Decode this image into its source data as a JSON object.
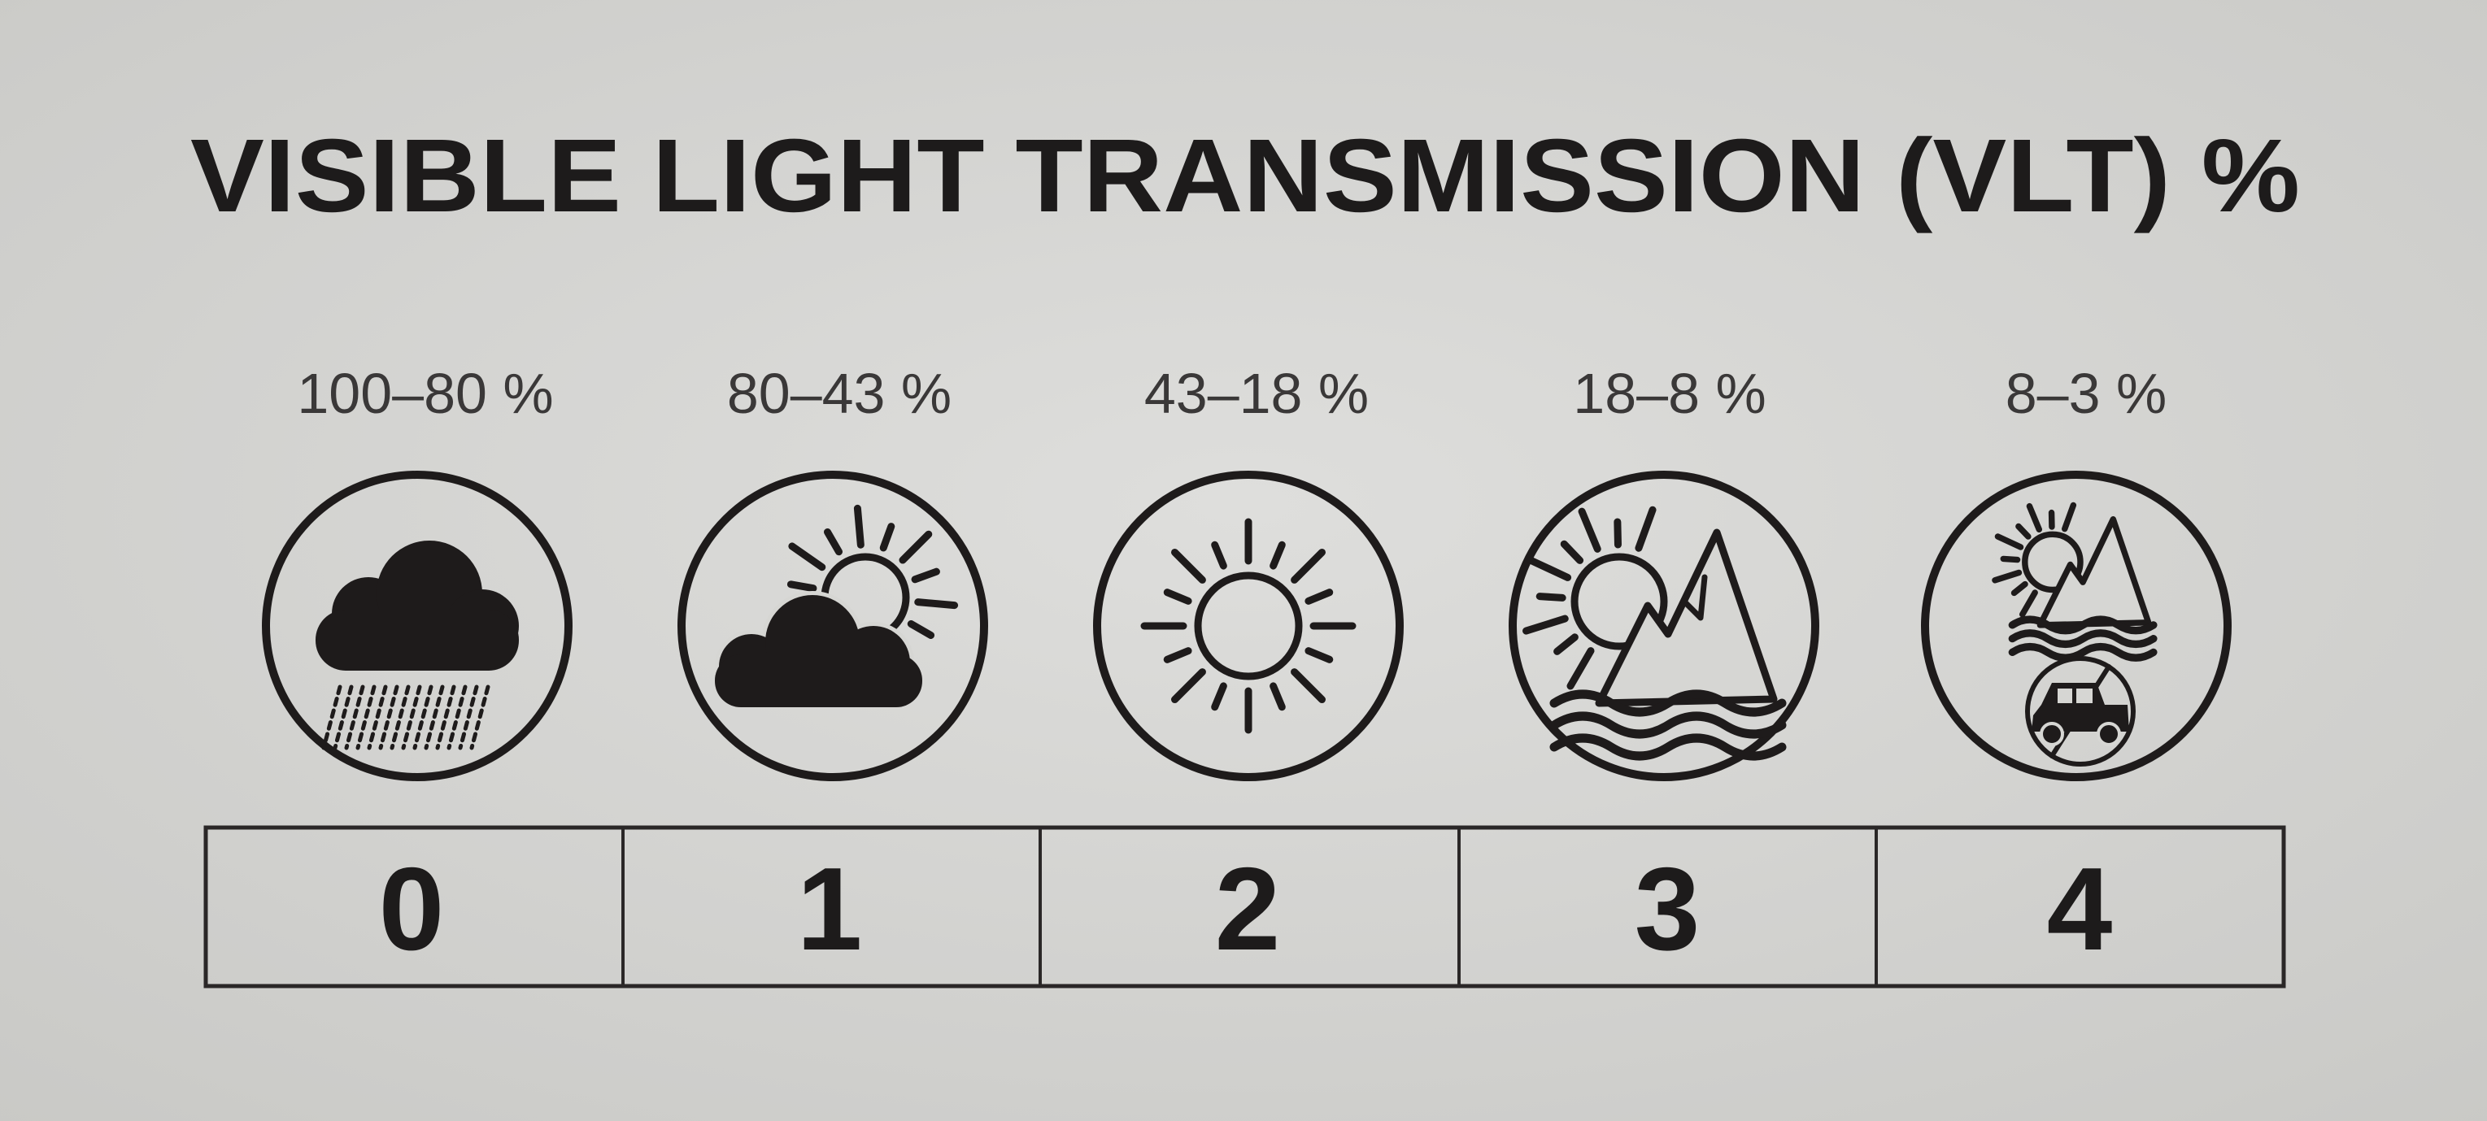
{
  "title": "VISIBLE LIGHT TRANSMISSION (VLT) %",
  "categories": [
    {
      "range": "100–80 %",
      "category": "0",
      "icon": "rain-cloud-icon"
    },
    {
      "range": "80–43 %",
      "category": "1",
      "icon": "sun-behind-cloud-icon"
    },
    {
      "range": "43–18 %",
      "category": "2",
      "icon": "sun-icon"
    },
    {
      "range": "18–8 %",
      "category": "3",
      "icon": "sun-mountain-water-icon"
    },
    {
      "range": "8–3 %",
      "category": "4",
      "icon": "sun-mountain-water-no-driving-icon"
    }
  ],
  "colors": {
    "ink": "#1e1b1b",
    "background": "#d6d6d3"
  }
}
